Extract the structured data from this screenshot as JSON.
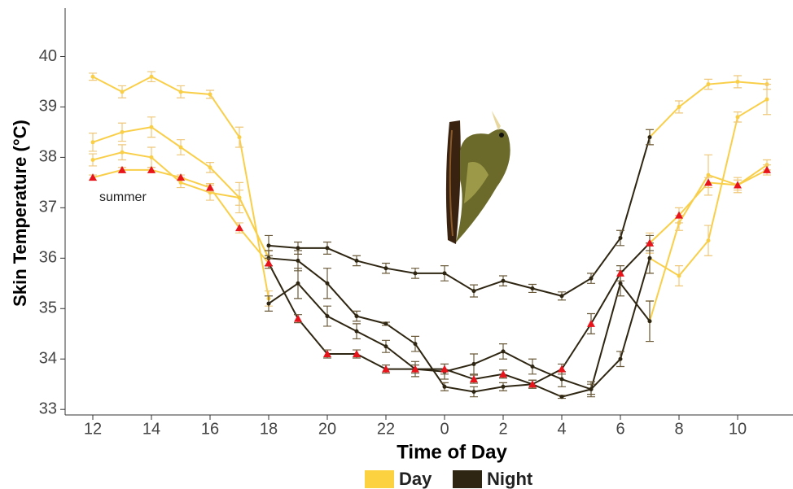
{
  "chart_data": {
    "type": "line",
    "x_label": "Time of Day",
    "y_label": "Skin Temperature (°C)",
    "annotation": "summer",
    "categories": [
      "12",
      null,
      "14",
      null,
      "16",
      null,
      "18",
      null,
      "20",
      null,
      "22",
      null,
      "0",
      null,
      "2",
      null,
      "4",
      null,
      "6",
      null,
      "8",
      null,
      "10",
      null
    ],
    "ylim": [
      32.89,
      40.96
    ],
    "yticks": [
      33,
      34,
      35,
      36,
      37,
      38,
      39,
      40
    ],
    "grid": false,
    "legend": [
      {
        "name": "Day",
        "color": "#fdd240"
      },
      {
        "name": "Night",
        "color": "#2e2612"
      }
    ],
    "series": [
      {
        "group": 0,
        "color": "#f9cf4a",
        "marker": "circle",
        "marker_color": "#f9cf4a",
        "values": [
          39.6,
          39.3,
          39.6,
          39.3,
          39.25,
          38.4,
          35.2,
          null,
          null,
          null,
          null,
          null,
          null,
          null,
          null,
          null,
          null,
          null,
          null,
          38.4,
          39.0,
          39.45,
          39.5,
          39.45
        ],
        "errors": [
          0.07,
          0.12,
          0.1,
          0.12,
          0.08,
          0.2,
          0.15,
          null,
          null,
          null,
          null,
          null,
          null,
          null,
          null,
          null,
          null,
          null,
          null,
          0.15,
          0.12,
          0.1,
          0.12,
          0.1
        ]
      },
      {
        "group": 0,
        "color": "#f9cf4a",
        "marker": "circle",
        "marker_color": "#f9cf4a",
        "values": [
          38.3,
          38.5,
          38.6,
          38.2,
          37.8,
          37.2,
          36.0,
          null,
          null,
          null,
          null,
          null,
          null,
          null,
          null,
          null,
          null,
          null,
          null,
          34.75,
          36.7,
          37.65,
          37.45,
          37.85
        ],
        "errors": [
          0.18,
          0.18,
          0.2,
          0.15,
          0.1,
          0.15,
          0.15,
          null,
          null,
          null,
          null,
          null,
          null,
          null,
          null,
          null,
          null,
          null,
          null,
          0.4,
          0.15,
          0.4,
          0.15,
          0.1
        ]
      },
      {
        "group": 0,
        "color": "#f9cf4a",
        "marker": "circle",
        "marker_color": "#f9cf4a",
        "values": [
          37.95,
          38.1,
          38.0,
          37.5,
          37.3,
          37.2,
          36.0,
          null,
          null,
          null,
          null,
          null,
          null,
          null,
          null,
          null,
          null,
          null,
          null,
          36.0,
          35.65,
          36.35,
          38.8,
          39.15
        ],
        "errors": [
          0.12,
          0.15,
          0.2,
          0.1,
          0.15,
          0.3,
          0.15,
          null,
          null,
          null,
          null,
          null,
          null,
          null,
          null,
          null,
          null,
          null,
          null,
          0.3,
          0.2,
          0.3,
          0.1,
          0.3
        ]
      },
      {
        "group": 0,
        "color": "#f9cf4a",
        "marker": "triangle",
        "marker_color": "#e8141b",
        "values": [
          37.6,
          37.75,
          37.75,
          37.6,
          37.4,
          36.6,
          35.9,
          null,
          null,
          null,
          null,
          null,
          null,
          null,
          null,
          null,
          null,
          null,
          null,
          36.3,
          36.85,
          37.5,
          37.45,
          37.75
        ],
        "errors": [
          0.05,
          0.05,
          0.05,
          0.05,
          0.08,
          0.1,
          0.1,
          null,
          null,
          null,
          null,
          null,
          null,
          null,
          null,
          null,
          null,
          null,
          null,
          0.2,
          0.15,
          0.1,
          0.1,
          0.1
        ]
      },
      {
        "group": 1,
        "color": "#2e2612",
        "marker": "circle",
        "marker_color": "#2e2612",
        "values": [
          null,
          null,
          null,
          null,
          null,
          null,
          36.25,
          36.2,
          36.2,
          35.95,
          35.8,
          35.7,
          35.7,
          35.35,
          35.55,
          35.4,
          35.25,
          35.6,
          36.4,
          38.4,
          null,
          null,
          null,
          null
        ],
        "errors": [
          null,
          null,
          null,
          null,
          null,
          null,
          0.2,
          0.12,
          0.12,
          0.1,
          0.1,
          0.1,
          0.15,
          0.12,
          0.1,
          0.08,
          0.08,
          0.1,
          0.15,
          0.15,
          null,
          null,
          null,
          null
        ]
      },
      {
        "group": 1,
        "color": "#2e2612",
        "marker": "circle",
        "marker_color": "#2e2612",
        "values": [
          null,
          null,
          null,
          null,
          null,
          null,
          36.0,
          35.95,
          35.5,
          34.85,
          34.7,
          34.3,
          33.45,
          33.35,
          33.45,
          33.5,
          33.25,
          33.4,
          35.5,
          34.75,
          null,
          null,
          null,
          null
        ],
        "errors": [
          null,
          null,
          null,
          null,
          null,
          null,
          0.15,
          0.2,
          0.3,
          0.1,
          0.03,
          0.15,
          0.08,
          0.1,
          0.08,
          0.08,
          0.03,
          0.15,
          0.25,
          0.4,
          null,
          null,
          null,
          null
        ]
      },
      {
        "group": 1,
        "color": "#2e2612",
        "marker": "circle",
        "marker_color": "#2e2612",
        "values": [
          null,
          null,
          null,
          null,
          null,
          null,
          35.1,
          35.5,
          34.85,
          34.55,
          34.25,
          33.8,
          33.75,
          33.9,
          34.15,
          33.85,
          33.6,
          33.4,
          34.0,
          36.0,
          null,
          null,
          null,
          null
        ],
        "errors": [
          null,
          null,
          null,
          null,
          null,
          null,
          0.15,
          0.3,
          0.2,
          0.15,
          0.12,
          0.15,
          0.15,
          0.2,
          0.15,
          0.15,
          0.15,
          0.1,
          0.15,
          0.3,
          null,
          null,
          null,
          null
        ]
      },
      {
        "group": 1,
        "color": "#2e2612",
        "marker": "triangle",
        "marker_color": "#e8141b",
        "values": [
          null,
          null,
          null,
          null,
          null,
          null,
          35.9,
          34.8,
          34.1,
          34.1,
          33.8,
          33.8,
          33.8,
          33.6,
          33.7,
          33.5,
          33.8,
          34.7,
          35.7,
          36.3,
          null,
          null,
          null,
          null
        ],
        "errors": [
          null,
          null,
          null,
          null,
          null,
          null,
          0.1,
          0.08,
          0.08,
          0.08,
          0.08,
          0.08,
          0.1,
          0.08,
          0.08,
          0.08,
          0.1,
          0.2,
          0.15,
          0.15,
          null,
          null,
          null,
          null
        ]
      }
    ]
  }
}
